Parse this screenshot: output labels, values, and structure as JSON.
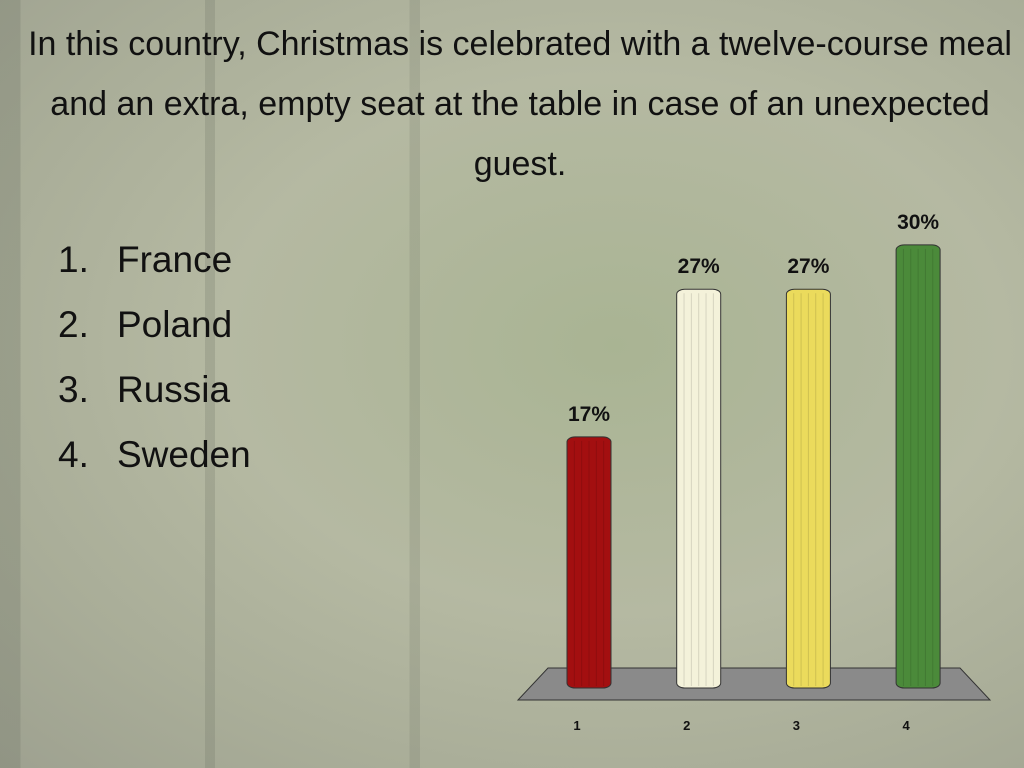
{
  "slide": {
    "question": "In this country, Christmas is celebrated with a twelve-course meal and an extra, empty seat at the table in case of an unexpected guest.",
    "options": [
      "France",
      "Poland",
      "Russia",
      "Sweden"
    ]
  },
  "chart_data": {
    "type": "bar",
    "categories": [
      "1",
      "2",
      "3",
      "4"
    ],
    "values": [
      17,
      27,
      27,
      30
    ],
    "value_labels": [
      "17%",
      "27%",
      "27%",
      "30%"
    ],
    "colors": [
      "#a30f10",
      "#f4f2da",
      "#ebdb5c",
      "#4b8a3a"
    ]
  }
}
